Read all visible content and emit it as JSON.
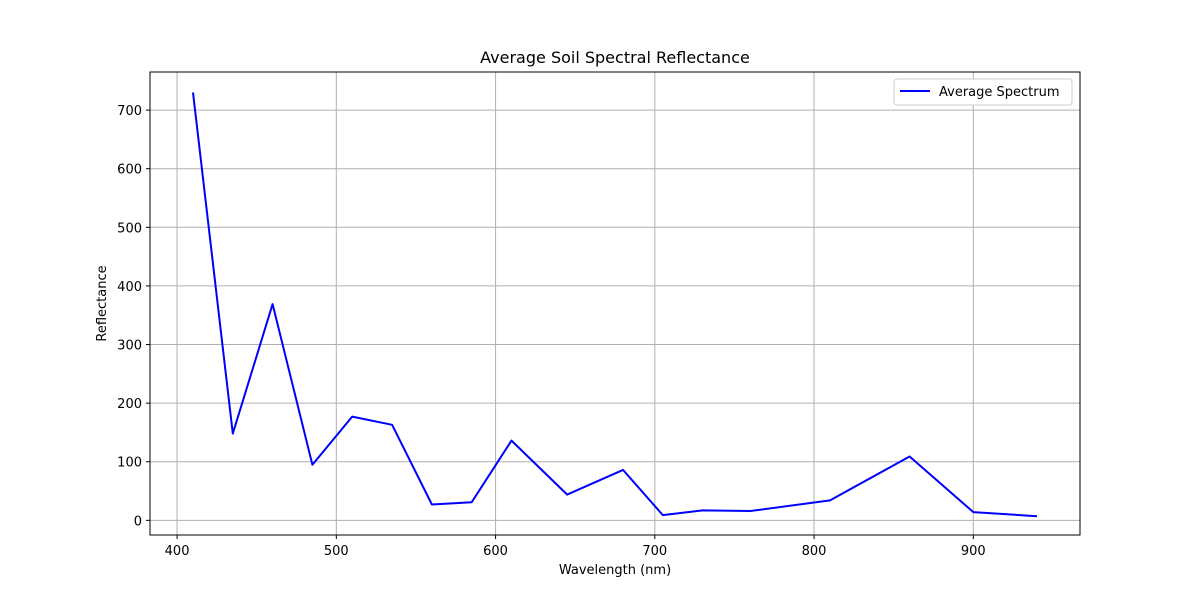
{
  "chart_data": {
    "type": "line",
    "title": "Average Soil Spectral Reflectance",
    "xlabel": "Wavelength (nm)",
    "ylabel": "Reflectance",
    "xlim": [
      383,
      967
    ],
    "ylim": [
      -25,
      765
    ],
    "xticks": [
      400,
      500,
      600,
      700,
      800,
      900
    ],
    "yticks": [
      0,
      100,
      200,
      300,
      400,
      500,
      600,
      700
    ],
    "grid": true,
    "legend_position": "top-right",
    "series": [
      {
        "name": "Average Spectrum",
        "color": "#0000ff",
        "x": [
          410,
          435,
          460,
          485,
          510,
          535,
          560,
          585,
          610,
          645,
          680,
          705,
          730,
          760,
          810,
          860,
          900,
          940
        ],
        "y": [
          730,
          148,
          369,
          95,
          177,
          163,
          27,
          31,
          136,
          44,
          86,
          9,
          17,
          16,
          34,
          109,
          14,
          7
        ]
      }
    ]
  }
}
